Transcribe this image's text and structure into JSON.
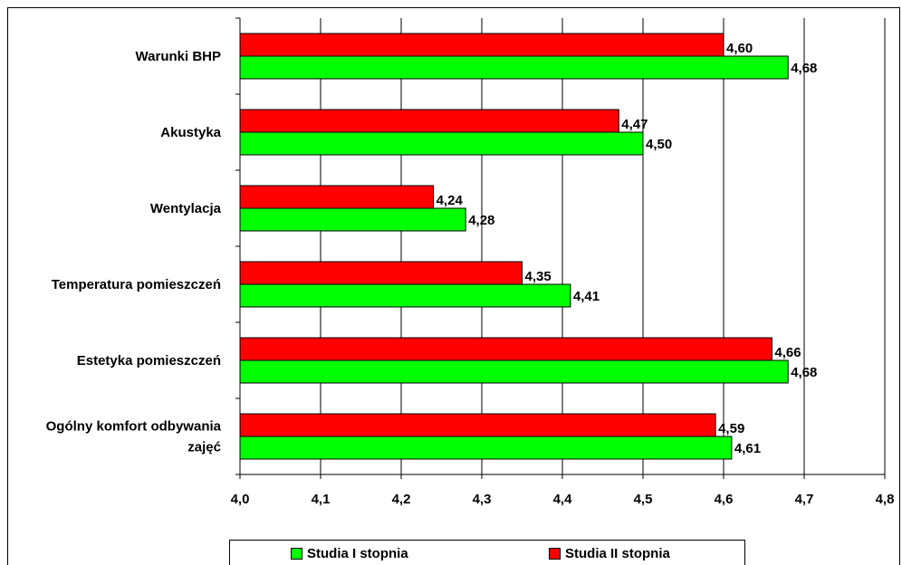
{
  "chart_data": {
    "type": "bar",
    "orientation": "horizontal",
    "categories": [
      "Warunki BHP",
      "Akustyka",
      "Wentylacja",
      "Temperatura pomieszczeń",
      "Estetyka pomieszczeń",
      "Ogólny komfort odbywania zajęć"
    ],
    "category_label_lines": [
      [
        "Warunki BHP"
      ],
      [
        "Akustyka"
      ],
      [
        "Wentylacja"
      ],
      [
        "Temperatura pomieszczeń"
      ],
      [
        "Estetyka pomieszczeń"
      ],
      [
        "Ogólny komfort odbywania",
        "zajęć"
      ]
    ],
    "series": [
      {
        "name": "Studia I stopnia",
        "color": "#00ff00",
        "values": [
          4.68,
          4.5,
          4.28,
          4.41,
          4.68,
          4.61
        ],
        "labels": [
          "4,68",
          "4,50",
          "4,28",
          "4,41",
          "4,68",
          "4,61"
        ]
      },
      {
        "name": "Studia II stopnia",
        "color": "#ff0000",
        "values": [
          4.6,
          4.47,
          4.24,
          4.35,
          4.66,
          4.59
        ],
        "labels": [
          "4,60",
          "4,47",
          "4,24",
          "4,35",
          "4,66",
          "4,59"
        ]
      }
    ],
    "xlim": [
      4.0,
      4.8
    ],
    "x_ticks": [
      4.0,
      4.1,
      4.2,
      4.3,
      4.4,
      4.5,
      4.6,
      4.7,
      4.8
    ],
    "x_tick_labels": [
      "4,0",
      "4,1",
      "4,2",
      "4,3",
      "4,4",
      "4,5",
      "4,6",
      "4,7",
      "4,8"
    ],
    "grid": "vertical",
    "legend": "bottom",
    "title": "",
    "xlabel": "",
    "ylabel": ""
  }
}
